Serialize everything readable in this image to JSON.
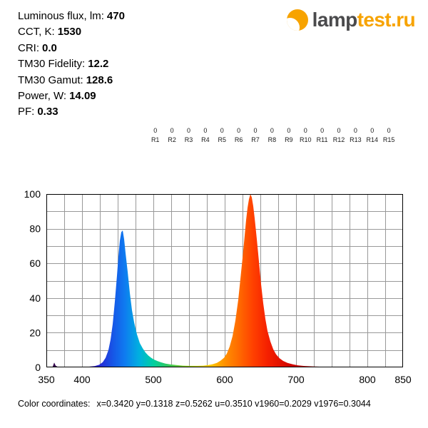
{
  "header": {
    "info_lines": [
      {
        "label": "Luminous flux, lm:",
        "value": "470"
      },
      {
        "label": "CCT, K:",
        "value": "1530"
      },
      {
        "label": "CRI:",
        "value": "0.0"
      },
      {
        "label": "TM30 Fidelity:",
        "value": "12.2"
      },
      {
        "label": "TM30 Gamut:",
        "value": "128.6"
      },
      {
        "label": "Power, W:",
        "value": "14.09"
      },
      {
        "label": "PF:",
        "value": "0.33"
      }
    ],
    "logo": {
      "text_dark": "lamp",
      "text_orange": "test.ru",
      "brand_orange": "#f7a300",
      "brand_dark": "#4a4a4c"
    }
  },
  "cri": {
    "labels": [
      "R1",
      "R2",
      "R3",
      "R4",
      "R5",
      "R6",
      "R7",
      "R8",
      "R9",
      "R10",
      "R11",
      "R12",
      "R13",
      "R14",
      "R15"
    ],
    "values": [
      "0",
      "0",
      "0",
      "0",
      "0",
      "0",
      "0",
      "0",
      "0",
      "0",
      "0",
      "0",
      "0",
      "0",
      "0"
    ]
  },
  "chart_data": {
    "type": "area",
    "description": "Spectral power distribution, two narrow peaks (blue ~455 nm at 79, red-orange ~636 nm at 100), tiny spike near 361 nm",
    "x_range": [
      350,
      850
    ],
    "y_range": [
      0,
      100
    ],
    "x_tick_labels": [
      350,
      400,
      500,
      600,
      700,
      800,
      850
    ],
    "y_tick_labels": [
      0,
      20,
      40,
      60,
      80,
      100
    ],
    "x_grid_step": 25,
    "y_grid_step": 10,
    "grid": true,
    "grid_color": "#999999",
    "border_color": "#000000",
    "series": [
      {
        "name": "spectrum",
        "points": [
          [
            350,
            0
          ],
          [
            357,
            0
          ],
          [
            359,
            0.5
          ],
          [
            361,
            2.8
          ],
          [
            363,
            1
          ],
          [
            366,
            0.3
          ],
          [
            375,
            0.15
          ],
          [
            390,
            0.15
          ],
          [
            400,
            0.2
          ],
          [
            410,
            0.4
          ],
          [
            418,
            0.8
          ],
          [
            424,
            1.5
          ],
          [
            429,
            3
          ],
          [
            433,
            5.5
          ],
          [
            437,
            10
          ],
          [
            440,
            16
          ],
          [
            443,
            25
          ],
          [
            446,
            38
          ],
          [
            449,
            53
          ],
          [
            451,
            64
          ],
          [
            453,
            73
          ],
          [
            455,
            78
          ],
          [
            457,
            79
          ],
          [
            459,
            74
          ],
          [
            461,
            66
          ],
          [
            464,
            55
          ],
          [
            467,
            43
          ],
          [
            470,
            33
          ],
          [
            473,
            26
          ],
          [
            477,
            19
          ],
          [
            481,
            14
          ],
          [
            485,
            11
          ],
          [
            489,
            8.5
          ],
          [
            493,
            6.8
          ],
          [
            497,
            5.5
          ],
          [
            501,
            4.5
          ],
          [
            506,
            3.6
          ],
          [
            511,
            2.9
          ],
          [
            517,
            2.2
          ],
          [
            524,
            1.7
          ],
          [
            532,
            1.3
          ],
          [
            541,
            1
          ],
          [
            551,
            0.85
          ],
          [
            561,
            0.85
          ],
          [
            570,
            1
          ],
          [
            577,
            1.3
          ],
          [
            583,
            1.8
          ],
          [
            589,
            2.6
          ],
          [
            594,
            3.8
          ],
          [
            599,
            5.5
          ],
          [
            603,
            8
          ],
          [
            607,
            12
          ],
          [
            611,
            18
          ],
          [
            615,
            27
          ],
          [
            619,
            39
          ],
          [
            622,
            51
          ],
          [
            625,
            63
          ],
          [
            628,
            76
          ],
          [
            630,
            85
          ],
          [
            632,
            92
          ],
          [
            634,
            97
          ],
          [
            636,
            100
          ],
          [
            638,
            98
          ],
          [
            640,
            93
          ],
          [
            642,
            86
          ],
          [
            645,
            74
          ],
          [
            648,
            61
          ],
          [
            651,
            48
          ],
          [
            654,
            37
          ],
          [
            657,
            28
          ],
          [
            660,
            21
          ],
          [
            664,
            15
          ],
          [
            668,
            10.5
          ],
          [
            672,
            7.5
          ],
          [
            677,
            5.2
          ],
          [
            682,
            3.7
          ],
          [
            688,
            2.6
          ],
          [
            695,
            1.8
          ],
          [
            702,
            1.2
          ],
          [
            712,
            0.8
          ],
          [
            725,
            0.5
          ],
          [
            740,
            0.3
          ],
          [
            760,
            0.18
          ],
          [
            790,
            0.1
          ],
          [
            820,
            0.04
          ],
          [
            850,
            0
          ]
        ]
      }
    ],
    "gradient_stops": [
      {
        "wl": 350,
        "color": "#240030"
      },
      {
        "wl": 390,
        "color": "#55008f"
      },
      {
        "wl": 420,
        "color": "#2b1fd0"
      },
      {
        "wl": 445,
        "color": "#155ae8"
      },
      {
        "wl": 460,
        "color": "#0f7bf0"
      },
      {
        "wl": 480,
        "color": "#00b0e0"
      },
      {
        "wl": 500,
        "color": "#00cfa0"
      },
      {
        "wl": 520,
        "color": "#30c860"
      },
      {
        "wl": 555,
        "color": "#a8d000"
      },
      {
        "wl": 580,
        "color": "#ffc800"
      },
      {
        "wl": 600,
        "color": "#ff9100"
      },
      {
        "wl": 620,
        "color": "#ff6a00"
      },
      {
        "wl": 640,
        "color": "#ff4000"
      },
      {
        "wl": 660,
        "color": "#f52000"
      },
      {
        "wl": 700,
        "color": "#c80000"
      },
      {
        "wl": 850,
        "color": "#700000"
      }
    ]
  },
  "footer": {
    "label": "Color coordinates:",
    "values": "x=0.3420 y=0.1318 z=0.5262 u=0.3510 v1960=0.2029 v1976=0.3044"
  }
}
